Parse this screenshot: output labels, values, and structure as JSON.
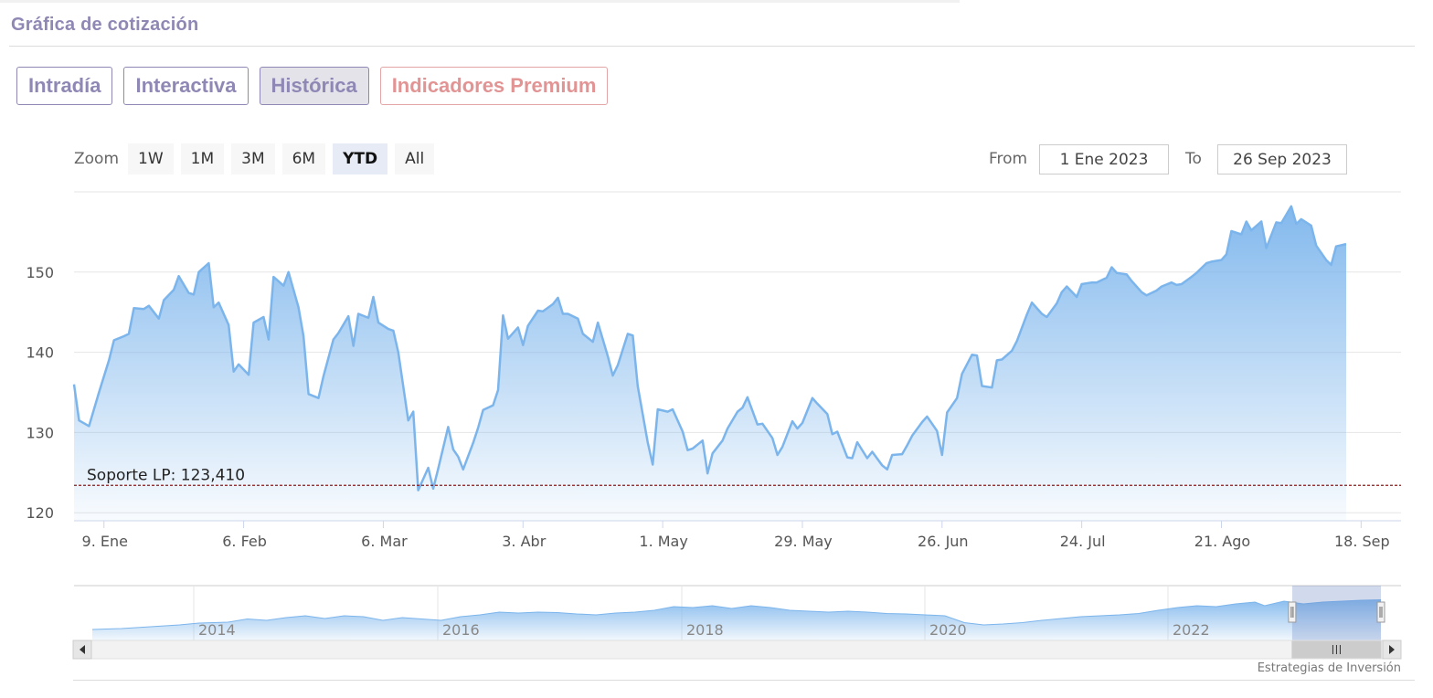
{
  "header": {
    "title": "Gráfica de cotización"
  },
  "tabs": [
    {
      "label": "Intradía",
      "active": false
    },
    {
      "label": "Interactiva",
      "active": false
    },
    {
      "label": "Histórica",
      "active": true
    },
    {
      "label": "Indicadores Premium",
      "active": false
    }
  ],
  "zoom": {
    "label": "Zoom",
    "options": [
      "1W",
      "1M",
      "3M",
      "6M",
      "YTD",
      "All"
    ],
    "selected": "YTD"
  },
  "range": {
    "from_label": "From",
    "from_value": "1 Ene 2023",
    "to_label": "To",
    "to_value": "26 Sep 2023"
  },
  "watermark": "Estrategias de Inversión",
  "colors": {
    "line": "#7cb5ec",
    "support": "#8b1a1a",
    "tab": "#8f88b5",
    "premium": "#e29494"
  },
  "chart_data": {
    "type": "area",
    "y_ticks": [
      120,
      130,
      140,
      150
    ],
    "ylim": [
      119,
      160
    ],
    "x_ticks": [
      {
        "day": 8,
        "label": "9. Ene"
      },
      {
        "day": 36,
        "label": "6. Feb"
      },
      {
        "day": 64,
        "label": "6. Mar"
      },
      {
        "day": 92,
        "label": "3. Abr"
      },
      {
        "day": 120,
        "label": "1. May"
      },
      {
        "day": 148,
        "label": "29. May"
      },
      {
        "day": 176,
        "label": "26. Jun"
      },
      {
        "day": 204,
        "label": "24. Jul"
      },
      {
        "day": 232,
        "label": "21. Ago"
      },
      {
        "day": 260,
        "label": "18. Sep"
      }
    ],
    "x_range_days": [
      2,
      268
    ],
    "support": {
      "label": "Soporte LP: 123,410",
      "value": 123.41
    },
    "series": [
      {
        "values": [
          [
            2,
            136.0
          ],
          [
            3,
            131.5
          ],
          [
            5,
            130.8
          ],
          [
            7,
            135.0
          ],
          [
            9,
            139.0
          ],
          [
            10,
            141.5
          ],
          [
            12,
            142.0
          ],
          [
            13,
            142.3
          ],
          [
            14,
            145.5
          ],
          [
            16,
            145.4
          ],
          [
            17,
            145.8
          ],
          [
            19,
            144.2
          ],
          [
            20,
            146.5
          ],
          [
            22,
            147.8
          ],
          [
            23,
            149.5
          ],
          [
            25,
            147.4
          ],
          [
            26,
            147.2
          ],
          [
            27,
            150.0
          ],
          [
            29,
            151.1
          ],
          [
            30,
            145.6
          ],
          [
            31,
            146.2
          ],
          [
            33,
            143.4
          ],
          [
            34,
            137.6
          ],
          [
            35,
            138.5
          ],
          [
            37,
            137.2
          ],
          [
            38,
            143.7
          ],
          [
            40,
            144.4
          ],
          [
            41,
            141.6
          ],
          [
            42,
            149.4
          ],
          [
            44,
            148.3
          ],
          [
            45,
            150.0
          ],
          [
            47,
            145.6
          ],
          [
            48,
            142.0
          ],
          [
            49,
            134.8
          ],
          [
            51,
            134.3
          ],
          [
            52,
            137.0
          ],
          [
            54,
            141.6
          ],
          [
            55,
            142.4
          ],
          [
            57,
            144.5
          ],
          [
            58,
            140.8
          ],
          [
            59,
            144.8
          ],
          [
            61,
            144.3
          ],
          [
            62,
            146.9
          ],
          [
            63,
            143.7
          ],
          [
            65,
            142.9
          ],
          [
            66,
            142.7
          ],
          [
            67,
            140.0
          ],
          [
            69,
            131.5
          ],
          [
            70,
            132.6
          ],
          [
            71,
            122.8
          ],
          [
            73,
            125.6
          ],
          [
            74,
            123.0
          ],
          [
            75,
            125.5
          ],
          [
            77,
            130.7
          ],
          [
            78,
            127.9
          ],
          [
            79,
            127.0
          ],
          [
            80,
            125.4
          ],
          [
            82,
            128.7
          ],
          [
            83,
            130.6
          ],
          [
            84,
            132.8
          ],
          [
            86,
            133.4
          ],
          [
            87,
            135.3
          ],
          [
            88,
            144.6
          ],
          [
            89,
            141.7
          ],
          [
            91,
            143.1
          ],
          [
            92,
            140.9
          ],
          [
            93,
            143.3
          ],
          [
            95,
            145.2
          ],
          [
            96,
            145.1
          ],
          [
            98,
            146.0
          ],
          [
            99,
            146.8
          ],
          [
            100,
            144.8
          ],
          [
            101,
            144.8
          ],
          [
            103,
            144.2
          ],
          [
            104,
            142.3
          ],
          [
            106,
            141.3
          ],
          [
            107,
            143.7
          ],
          [
            109,
            139.5
          ],
          [
            110,
            137.1
          ],
          [
            111,
            138.4
          ],
          [
            113,
            142.3
          ],
          [
            114,
            142.1
          ],
          [
            115,
            135.8
          ],
          [
            117,
            128.8
          ],
          [
            118,
            126.0
          ],
          [
            119,
            132.9
          ],
          [
            121,
            132.6
          ],
          [
            122,
            132.9
          ],
          [
            124,
            130.1
          ],
          [
            125,
            127.8
          ],
          [
            126,
            128.0
          ],
          [
            128,
            129.0
          ],
          [
            129,
            124.9
          ],
          [
            130,
            127.4
          ],
          [
            132,
            129.0
          ],
          [
            133,
            130.5
          ],
          [
            135,
            132.6
          ],
          [
            136,
            133.1
          ],
          [
            137,
            134.4
          ],
          [
            139,
            131.0
          ],
          [
            140,
            131.1
          ],
          [
            142,
            129.3
          ],
          [
            143,
            127.2
          ],
          [
            144,
            128.2
          ],
          [
            146,
            131.4
          ],
          [
            147,
            130.5
          ],
          [
            148,
            131.2
          ],
          [
            150,
            134.3
          ],
          [
            151,
            133.6
          ],
          [
            153,
            132.3
          ],
          [
            154,
            129.8
          ],
          [
            155,
            130.1
          ],
          [
            157,
            126.9
          ],
          [
            158,
            126.8
          ],
          [
            159,
            128.8
          ],
          [
            161,
            126.8
          ],
          [
            162,
            127.6
          ],
          [
            164,
            125.9
          ],
          [
            165,
            125.4
          ],
          [
            166,
            127.2
          ],
          [
            168,
            127.3
          ],
          [
            169,
            128.4
          ],
          [
            170,
            129.6
          ],
          [
            172,
            131.3
          ],
          [
            173,
            132.0
          ],
          [
            175,
            130.2
          ],
          [
            176,
            127.2
          ],
          [
            177,
            132.5
          ],
          [
            179,
            134.3
          ],
          [
            180,
            137.3
          ],
          [
            182,
            139.7
          ],
          [
            183,
            139.6
          ],
          [
            184,
            135.8
          ],
          [
            186,
            135.6
          ],
          [
            187,
            139.0
          ],
          [
            188,
            139.1
          ],
          [
            190,
            140.2
          ],
          [
            191,
            141.4
          ],
          [
            193,
            144.7
          ],
          [
            194,
            146.2
          ],
          [
            196,
            144.8
          ],
          [
            197,
            144.4
          ],
          [
            199,
            146.1
          ],
          [
            200,
            147.5
          ],
          [
            201,
            148.2
          ],
          [
            203,
            146.9
          ],
          [
            204,
            148.5
          ],
          [
            206,
            148.7
          ],
          [
            207,
            148.7
          ],
          [
            209,
            149.3
          ],
          [
            210,
            150.6
          ],
          [
            211,
            149.9
          ],
          [
            213,
            149.7
          ],
          [
            214,
            148.9
          ],
          [
            216,
            147.5
          ],
          [
            217,
            147.1
          ],
          [
            219,
            147.7
          ],
          [
            220,
            148.2
          ],
          [
            222,
            148.7
          ],
          [
            223,
            148.4
          ],
          [
            224,
            148.5
          ],
          [
            226,
            149.4
          ],
          [
            227,
            149.9
          ],
          [
            229,
            151.1
          ],
          [
            230,
            151.3
          ],
          [
            232,
            151.5
          ],
          [
            233,
            152.2
          ],
          [
            234,
            155.1
          ],
          [
            236,
            154.7
          ],
          [
            237,
            156.3
          ],
          [
            238,
            155.2
          ],
          [
            240,
            156.3
          ],
          [
            241,
            153.0
          ],
          [
            243,
            156.2
          ],
          [
            244,
            156.1
          ],
          [
            246,
            158.2
          ],
          [
            247,
            156.0
          ],
          [
            248,
            156.6
          ],
          [
            250,
            155.8
          ],
          [
            251,
            153.3
          ],
          [
            253,
            151.5
          ],
          [
            254,
            150.9
          ],
          [
            255,
            153.2
          ],
          [
            257,
            153.5
          ]
        ]
      }
    ]
  },
  "navigator": {
    "year_labels": [
      "2014",
      "2016",
      "2018",
      "2020",
      "2022"
    ],
    "series": [
      [
        0,
        0.1
      ],
      [
        3,
        0.12
      ],
      [
        6,
        0.16
      ],
      [
        9,
        0.2
      ],
      [
        11,
        0.24
      ],
      [
        14,
        0.26
      ],
      [
        16,
        0.33
      ],
      [
        18,
        0.3
      ],
      [
        20,
        0.36
      ],
      [
        22,
        0.4
      ],
      [
        24,
        0.34
      ],
      [
        26,
        0.4
      ],
      [
        28,
        0.38
      ],
      [
        30,
        0.3
      ],
      [
        32,
        0.36
      ],
      [
        34,
        0.33
      ],
      [
        36,
        0.3
      ],
      [
        38,
        0.38
      ],
      [
        40,
        0.42
      ],
      [
        42,
        0.48
      ],
      [
        44,
        0.46
      ],
      [
        46,
        0.48
      ],
      [
        48,
        0.47
      ],
      [
        50,
        0.44
      ],
      [
        52,
        0.42
      ],
      [
        54,
        0.46
      ],
      [
        56,
        0.48
      ],
      [
        58,
        0.52
      ],
      [
        60,
        0.6
      ],
      [
        62,
        0.58
      ],
      [
        64,
        0.62
      ],
      [
        66,
        0.56
      ],
      [
        68,
        0.62
      ],
      [
        70,
        0.58
      ],
      [
        72,
        0.52
      ],
      [
        74,
        0.5
      ],
      [
        76,
        0.48
      ],
      [
        78,
        0.5
      ],
      [
        80,
        0.48
      ],
      [
        82,
        0.45
      ],
      [
        84,
        0.44
      ],
      [
        86,
        0.42
      ],
      [
        88,
        0.4
      ],
      [
        90,
        0.25
      ],
      [
        92,
        0.2
      ],
      [
        94,
        0.22
      ],
      [
        96,
        0.25
      ],
      [
        98,
        0.3
      ],
      [
        100,
        0.34
      ],
      [
        102,
        0.38
      ],
      [
        104,
        0.4
      ],
      [
        106,
        0.42
      ],
      [
        108,
        0.45
      ],
      [
        110,
        0.52
      ],
      [
        112,
        0.58
      ],
      [
        114,
        0.62
      ],
      [
        116,
        0.6
      ],
      [
        118,
        0.66
      ],
      [
        120,
        0.7
      ],
      [
        121,
        0.62
      ],
      [
        123,
        0.72
      ],
      [
        125,
        0.66
      ],
      [
        127,
        0.7
      ],
      [
        129,
        0.72
      ],
      [
        131,
        0.74
      ],
      [
        133,
        0.75
      ]
    ],
    "window_fraction": [
      0.93,
      1.0
    ]
  }
}
